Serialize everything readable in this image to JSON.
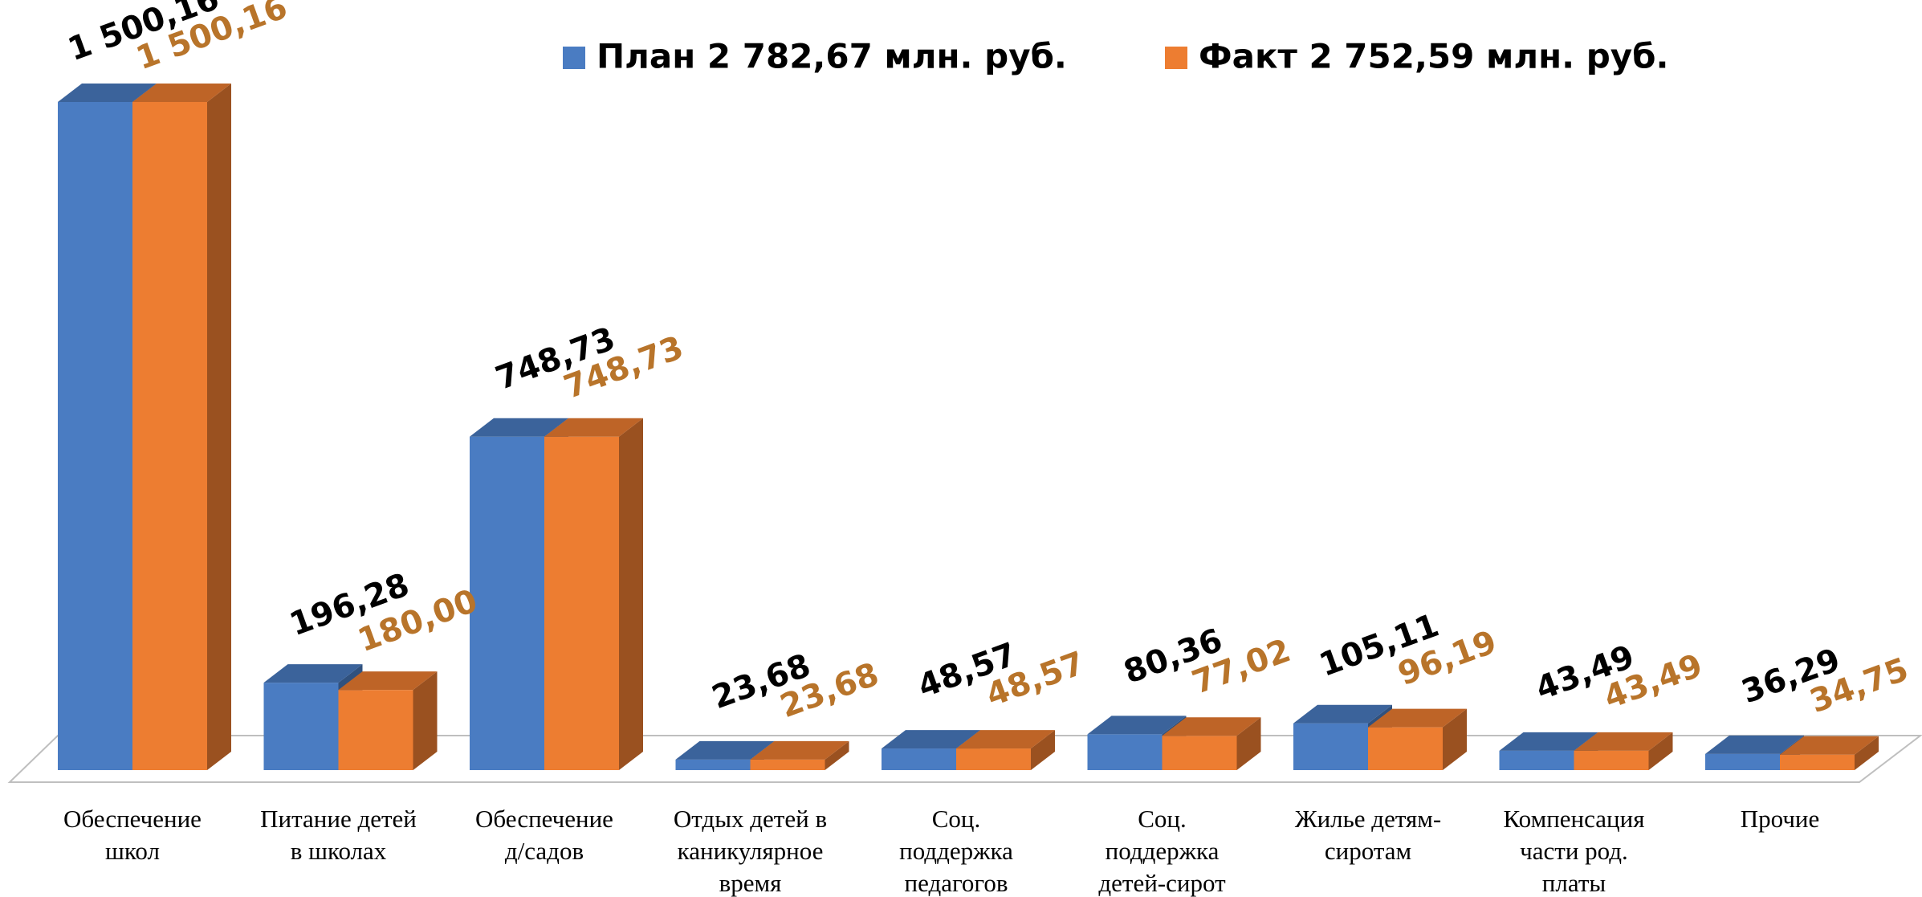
{
  "chart_data": {
    "type": "bar3d",
    "categories": [
      "Обеспечение\nшкол",
      "Питание детей\nв школах",
      "Обеспечение\nд/садов",
      "Отдых детей в\nканикулярное\nвремя",
      "Соц.\nподдержка\nпедагогов",
      "Соц.\nподдержка\nдетей-сирот",
      "Жилье детям-\nсиротам",
      "Компенсация\nчасти род.\nплаты",
      "Прочие"
    ],
    "series": [
      {
        "name": "План 2 782,67 млн. руб.",
        "color": "#4a7cc2",
        "label_color": "#000000",
        "values": [
          1500.16,
          196.28,
          748.73,
          23.68,
          48.57,
          80.36,
          105.11,
          43.49,
          36.29
        ],
        "value_labels": [
          "1 500,16",
          "196,28",
          "748,73",
          "23,68",
          "48,57",
          "80,36",
          "105,11",
          "43,49",
          "36,29"
        ]
      },
      {
        "name": "Факт 2 752,59 млн. руб.",
        "color": "#ed7d31",
        "label_color": "#b8742a",
        "values": [
          1500.16,
          180.0,
          748.73,
          23.68,
          48.57,
          77.02,
          96.19,
          43.49,
          34.75
        ],
        "value_labels": [
          "1 500,16",
          "180,00",
          "748,73",
          "23,68",
          "48,57",
          "77,02",
          "96,19",
          "43,49",
          "34,75"
        ]
      }
    ]
  }
}
